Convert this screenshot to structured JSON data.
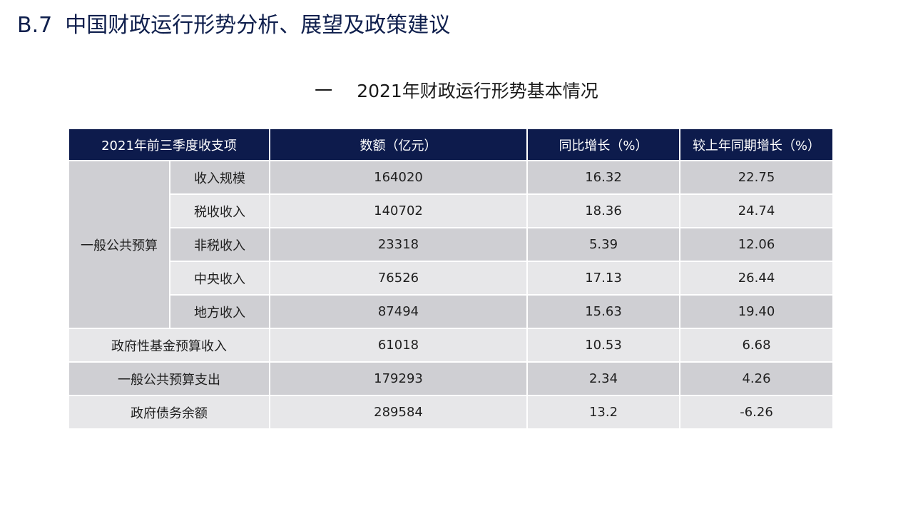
{
  "slide": {
    "code": "B.7",
    "title": "中国财政运行形势分析、展望及政策建议"
  },
  "section": {
    "number": "一",
    "title": "2021年财政运行形势基本情况"
  },
  "table": {
    "headers": [
      "2021年前三季度收支项",
      "数额（亿元）",
      "同比增长（%）",
      "较上年同期增长（%）"
    ],
    "group_label": "一般公共预算",
    "rows": [
      {
        "label": "收入规模",
        "amount": "164020",
        "yoy": "16.32",
        "vs_last": "22.75"
      },
      {
        "label": "税收收入",
        "amount": "140702",
        "yoy": "18.36",
        "vs_last": "24.74"
      },
      {
        "label": "非税收入",
        "amount": "23318",
        "yoy": "5.39",
        "vs_last": "12.06"
      },
      {
        "label": "中央收入",
        "amount": "76526",
        "yoy": "17.13",
        "vs_last": "26.44"
      },
      {
        "label": "地方收入",
        "amount": "87494",
        "yoy": "15.63",
        "vs_last": "19.40"
      },
      {
        "label": "政府性基金预算收入",
        "amount": "61018",
        "yoy": "10.53",
        "vs_last": "6.68"
      },
      {
        "label": "一般公共预算支出",
        "amount": "179293",
        "yoy": "2.34",
        "vs_last": "4.26"
      },
      {
        "label": "政府债务余额",
        "amount": "289584",
        "yoy": "13.2",
        "vs_last": "-6.26"
      }
    ]
  },
  "colors": {
    "header_bg": "#0d1b4c",
    "row_dark": "#cfcfd3",
    "row_light": "#e7e7e9",
    "title": "#0f1f4d"
  }
}
